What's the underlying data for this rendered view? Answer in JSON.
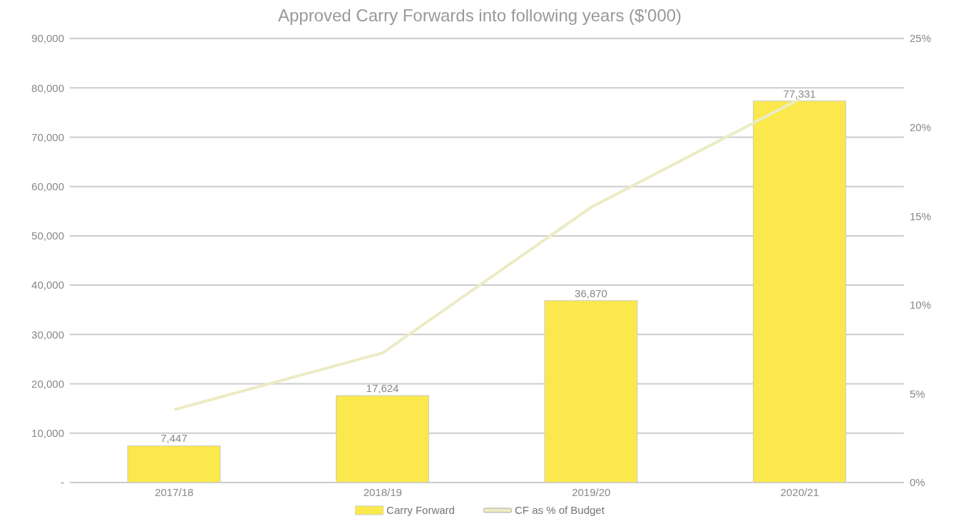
{
  "chart_data": {
    "type": "bar",
    "title": "Approved Carry Forwards into following years ($'000)",
    "categories": [
      "2017/18",
      "2018/19",
      "2019/20",
      "2020/21"
    ],
    "series": [
      {
        "name": "Carry Forward",
        "color": "#fbe84c",
        "values": [
          7447,
          17624,
          36870,
          77331
        ],
        "value_labels": [
          "7,447",
          "17,624",
          "36,870",
          "77,331"
        ]
      },
      {
        "name": "CF as % of Budget",
        "type": "line",
        "axis": "y2",
        "color": "#ecebc4",
        "values": [
          4.1,
          7.3,
          15.5,
          21.6
        ]
      }
    ],
    "ylim": [
      0,
      90000
    ],
    "yticks": [
      {
        "value": 0,
        "label": "-"
      },
      {
        "value": 10000,
        "label": "10,000"
      },
      {
        "value": 20000,
        "label": "20,000"
      },
      {
        "value": 30000,
        "label": "30,000"
      },
      {
        "value": 40000,
        "label": "40,000"
      },
      {
        "value": 50000,
        "label": "50,000"
      },
      {
        "value": 60000,
        "label": "60,000"
      },
      {
        "value": 70000,
        "label": "70,000"
      },
      {
        "value": 80000,
        "label": "80,000"
      },
      {
        "value": 90000,
        "label": "90,000"
      }
    ],
    "y2lim": [
      0,
      25
    ],
    "y2ticks": [
      {
        "value": 0,
        "label": "0%"
      },
      {
        "value": 5,
        "label": "5%"
      },
      {
        "value": 10,
        "label": "10%"
      },
      {
        "value": 15,
        "label": "15%"
      },
      {
        "value": 20,
        "label": "20%"
      },
      {
        "value": 25,
        "label": "25%"
      }
    ],
    "grid": "y",
    "legend": "bottom",
    "marker": "none"
  }
}
